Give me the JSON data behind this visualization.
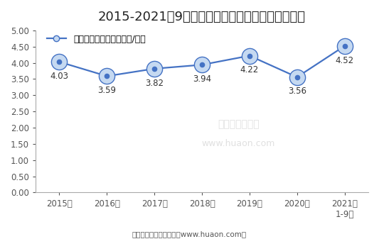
{
  "title": "2015-2021年9月大连商品交易所鸡蛋期货成交均价",
  "legend_label": "鸡蛋期货成交均价（万元/手）",
  "xlabel_values": [
    "2015年",
    "2016年",
    "2017年",
    "2018年",
    "2019年",
    "2020年",
    "2021年\n1-9月"
  ],
  "x_values": [
    0,
    1,
    2,
    3,
    4,
    5,
    6
  ],
  "y_values": [
    4.03,
    3.59,
    3.82,
    3.94,
    4.22,
    3.56,
    4.52
  ],
  "annotations": [
    "4.03",
    "3.59",
    "3.82",
    "3.94",
    "4.22",
    "3.56",
    "4.52"
  ],
  "annot_offsets": [
    -0.3,
    -0.3,
    -0.3,
    -0.3,
    -0.3,
    -0.3,
    -0.3
  ],
  "line_color": "#4472C4",
  "marker_outer_color": "#c5d9f1",
  "ylim": [
    0,
    5.0
  ],
  "yticks": [
    0.0,
    0.5,
    1.0,
    1.5,
    2.0,
    2.5,
    3.0,
    3.5,
    4.0,
    4.5,
    5.0
  ],
  "ytick_labels": [
    "0.00",
    "0.50",
    "1.00",
    "1.50",
    "2.00",
    "2.50",
    "3.00",
    "3.50",
    "4.00",
    "4.50",
    "5.00"
  ],
  "footer": "制图：华经产业研究院（www.huaon.com）",
  "bg_color": "#ffffff",
  "title_fontsize": 13,
  "legend_fontsize": 9,
  "tick_fontsize": 8.5,
  "annotation_fontsize": 8.5,
  "footer_fontsize": 7.5,
  "watermark_line1": "华经产业研究院",
  "watermark_line2": "www.huaon.com",
  "spine_color": "#aaaaaa"
}
